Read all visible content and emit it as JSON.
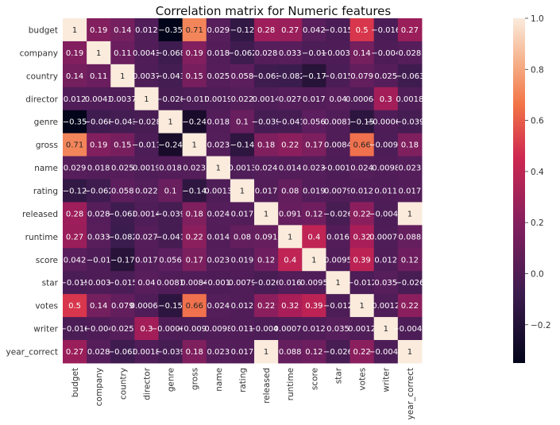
{
  "chart_data": {
    "type": "heatmap",
    "title": "Correlation matrix for Numeric features",
    "xlabel": "",
    "ylabel": "",
    "labels": [
      "budget",
      "company",
      "country",
      "director",
      "genre",
      "gross",
      "name",
      "rating",
      "released",
      "runtime",
      "score",
      "star",
      "votes",
      "writer",
      "year_correct"
    ],
    "matrix": [
      [
        1,
        0.19,
        0.14,
        0.012,
        -0.35,
        0.71,
        0.029,
        -0.12,
        0.28,
        0.27,
        0.042,
        -0.015,
        0.5,
        -0.016,
        0.27
      ],
      [
        0.19,
        1,
        0.11,
        0.0043,
        -0.068,
        0.19,
        0.018,
        -0.062,
        0.028,
        0.033,
        -0.01,
        -0.0032,
        0.14,
        -0.004,
        0.028
      ],
      [
        0.14,
        0.11,
        1,
        0.0037,
        -0.043,
        0.15,
        0.025,
        0.058,
        -0.063,
        -0.082,
        -0.17,
        -0.015,
        0.079,
        0.025,
        -0.063
      ],
      [
        0.012,
        0.0043,
        0.0037,
        1,
        -0.028,
        -0.011,
        0.0019,
        0.022,
        0.0014,
        0.027,
        0.017,
        0.04,
        0.00064,
        0.3,
        0.0018
      ],
      [
        -0.35,
        -0.068,
        -0.043,
        -0.028,
        1,
        -0.24,
        0.018,
        0.1,
        -0.039,
        -0.041,
        0.056,
        0.0081,
        -0.15,
        -0.00061,
        -0.039
      ],
      [
        0.71,
        0.19,
        0.15,
        -0.011,
        -0.24,
        1,
        0.023,
        -0.14,
        0.18,
        0.22,
        0.17,
        0.0084,
        0.66,
        -0.0095,
        0.18
      ],
      [
        0.029,
        0.018,
        0.025,
        0.0019,
        0.018,
        0.023,
        1,
        0.0013,
        0.024,
        0.014,
        0.023,
        -0.0019,
        0.024,
        0.0098,
        0.023
      ],
      [
        -0.12,
        -0.062,
        0.058,
        0.022,
        0.1,
        -0.14,
        0.0013,
        1,
        0.017,
        0.08,
        0.019,
        0.0079,
        0.012,
        0.011,
        0.017
      ],
      [
        0.28,
        0.028,
        -0.063,
        0.0014,
        -0.039,
        0.18,
        0.024,
        0.017,
        1,
        0.091,
        0.12,
        -0.026,
        0.22,
        -0.0046,
        1
      ],
      [
        0.27,
        0.033,
        -0.082,
        0.027,
        -0.041,
        0.22,
        0.014,
        0.08,
        0.091,
        1,
        0.4,
        0.016,
        0.32,
        0.00076,
        0.088
      ],
      [
        0.042,
        -0.01,
        -0.17,
        0.017,
        0.056,
        0.17,
        0.023,
        0.019,
        0.12,
        0.4,
        1,
        0.0095,
        0.39,
        0.012,
        0.12
      ],
      [
        -0.015,
        -0.0032,
        -0.015,
        0.04,
        0.0081,
        0.0084,
        -0.0019,
        0.0079,
        -0.026,
        0.016,
        0.0095,
        1,
        -0.012,
        0.035,
        -0.026
      ],
      [
        0.5,
        0.14,
        0.079,
        0.00064,
        -0.15,
        0.66,
        0.024,
        0.012,
        0.22,
        0.32,
        0.39,
        -0.012,
        1,
        0.0012,
        0.22
      ],
      [
        -0.016,
        -0.004,
        0.025,
        0.3,
        -0.00061,
        -0.0095,
        0.0098,
        0.011,
        -0.0046,
        0.00076,
        0.012,
        0.035,
        0.0012,
        1,
        -0.0045
      ],
      [
        0.27,
        0.028,
        -0.063,
        0.0018,
        -0.039,
        0.18,
        0.023,
        0.017,
        1,
        0.088,
        0.12,
        -0.026,
        0.22,
        -0.0045,
        1
      ]
    ],
    "colormap": "rocket",
    "vmin": -0.35,
    "vmax": 1,
    "colorbar_ticks": [
      "1.0",
      "0.8",
      "0.6",
      "0.4",
      "0.2",
      "0.0",
      "−0.2"
    ],
    "colorbar_tick_values": [
      1.0,
      0.8,
      0.6,
      0.4,
      0.2,
      0.0,
      -0.2
    ],
    "annotate": true,
    "grid": false
  }
}
